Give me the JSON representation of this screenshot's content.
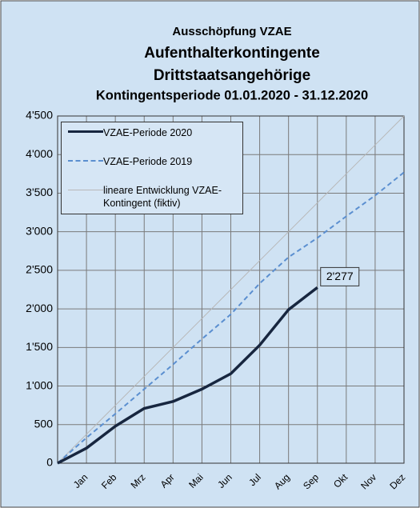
{
  "chart_data": {
    "type": "line",
    "title": [
      "Ausschöpfung VZAE",
      "Aufenthalterkontingente",
      "Drittstaatsangehörige",
      "Kontingentsperiode 01.01.2020 - 31.12.2020"
    ],
    "categories": [
      null,
      "Jan",
      "Feb",
      "Mrz",
      "Apr",
      "Mai",
      "Jun",
      "Jul",
      "Aug",
      "Sep",
      "Okt",
      "Nov",
      "Dez"
    ],
    "series": [
      {
        "name": "VZAE-Periode 2020",
        "color": "#17263f",
        "style": "solid",
        "width": 3.5,
        "values": [
          0,
          195,
          480,
          710,
          800,
          960,
          1160,
          1530,
          1990,
          2277,
          null,
          null,
          null
        ],
        "value_labels": [
          null,
          null,
          null,
          null,
          null,
          null,
          null,
          null,
          null,
          "2'277",
          null,
          null,
          null
        ]
      },
      {
        "name": "VZAE-Periode 2019",
        "color": "#5b8fd0",
        "style": "dashed",
        "width": 2,
        "values": [
          0,
          330,
          640,
          960,
          1280,
          1610,
          1930,
          2330,
          2670,
          2920,
          3200,
          3470,
          3770
        ]
      },
      {
        "name": "lineare Entwicklung VZAE-Kontingent (fiktiv)",
        "color": "#b8b8b8",
        "style": "solid",
        "width": 1,
        "values": [
          0,
          375,
          750,
          1125,
          1500,
          1875,
          2250,
          2625,
          3000,
          3375,
          3750,
          4125,
          4500
        ]
      }
    ],
    "ylim": [
      0,
      4500
    ],
    "yticks": [
      0,
      500,
      {
        "value": 1000,
        "label": "1'000"
      },
      {
        "value": 1500,
        "label": "1'500"
      },
      {
        "value": 2000,
        "label": "2'000"
      },
      {
        "value": 2500,
        "label": "2'500"
      },
      {
        "value": 3000,
        "label": "3'000"
      },
      {
        "value": 3500,
        "label": "3'500"
      },
      {
        "value": 4000,
        "label": "4'000"
      },
      {
        "value": 4500,
        "label": "4'500"
      }
    ],
    "grid": true
  }
}
